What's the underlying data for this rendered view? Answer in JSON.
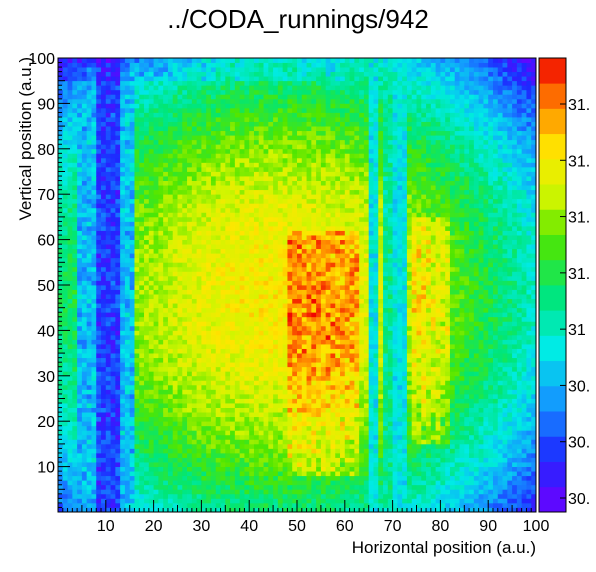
{
  "title": "../CODA_runnings/942",
  "chart_data": {
    "type": "heatmap",
    "title": "../CODA_runnings/942",
    "xlabel": "Horizontal position (a.u.)",
    "ylabel": "Vertical position (a.u.)",
    "xlim": [
      0,
      100
    ],
    "ylim": [
      0,
      100
    ],
    "x_ticks": [
      "10",
      "20",
      "30",
      "40",
      "50",
      "60",
      "70",
      "80",
      "90",
      "100"
    ],
    "y_ticks": [
      "10",
      "20",
      "30",
      "40",
      "50",
      "60",
      "70",
      "80",
      "90",
      "100"
    ],
    "colorbar_labels": [
      "31.",
      "31.",
      "31.",
      "31.",
      "31",
      "30.",
      "30.",
      "30."
    ],
    "bins": [
      100,
      100
    ],
    "features": {
      "disk_center": [
        47,
        48
      ],
      "low_column_x": [
        8,
        13
      ],
      "gap_columns_x": [
        65,
        74
      ],
      "hot_patches": [
        {
          "x": [
            48,
            63
          ],
          "y": [
            8,
            62
          ]
        },
        {
          "x": [
            74,
            82
          ],
          "y": [
            15,
            65
          ]
        }
      ]
    }
  }
}
